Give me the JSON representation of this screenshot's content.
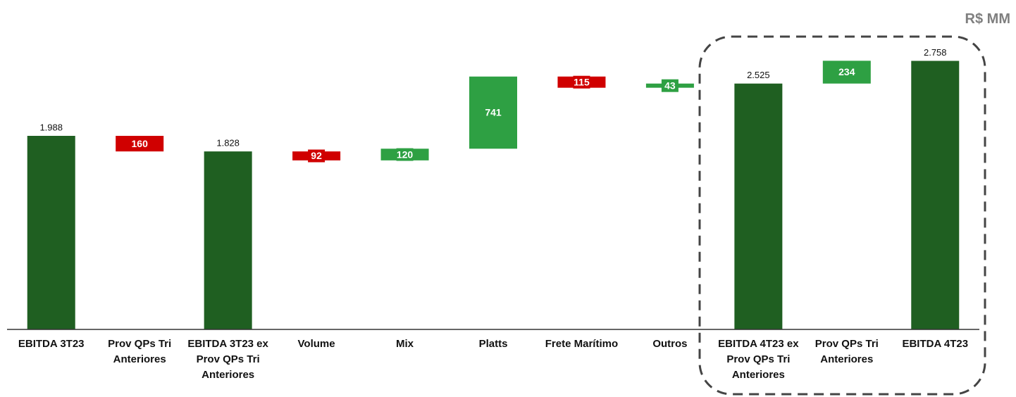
{
  "chart_data": {
    "type": "waterfall",
    "unit_label": "R$ MM",
    "categories": [
      "EBITDA 3T23",
      "Prov QPs Tri Anteriores",
      "EBITDA 3T23 ex Prov QPs Tri Anteriores",
      "Volume",
      "Mix",
      "Platts",
      "Frete Marítimo",
      "Outros",
      "EBITDA 4T23 ex Prov QPs Tri Anteriores",
      "Prov QPs Tri Anteriores",
      "EBITDA 4T23"
    ],
    "values": [
      1988,
      -160,
      1828,
      -92,
      120,
      741,
      -115,
      43,
      2525,
      234,
      2758
    ],
    "value_labels": [
      "1.988",
      "160",
      "1.828",
      "92",
      "120",
      "741",
      "115",
      "43",
      "2.525",
      "234",
      "2.758"
    ],
    "is_total": [
      true,
      false,
      true,
      false,
      false,
      false,
      false,
      false,
      true,
      false,
      true
    ],
    "colors": {
      "total": "#1f5f21",
      "increase": "#2ea043",
      "decrease": "#d00000"
    },
    "ylim": [
      0,
      3000
    ]
  }
}
